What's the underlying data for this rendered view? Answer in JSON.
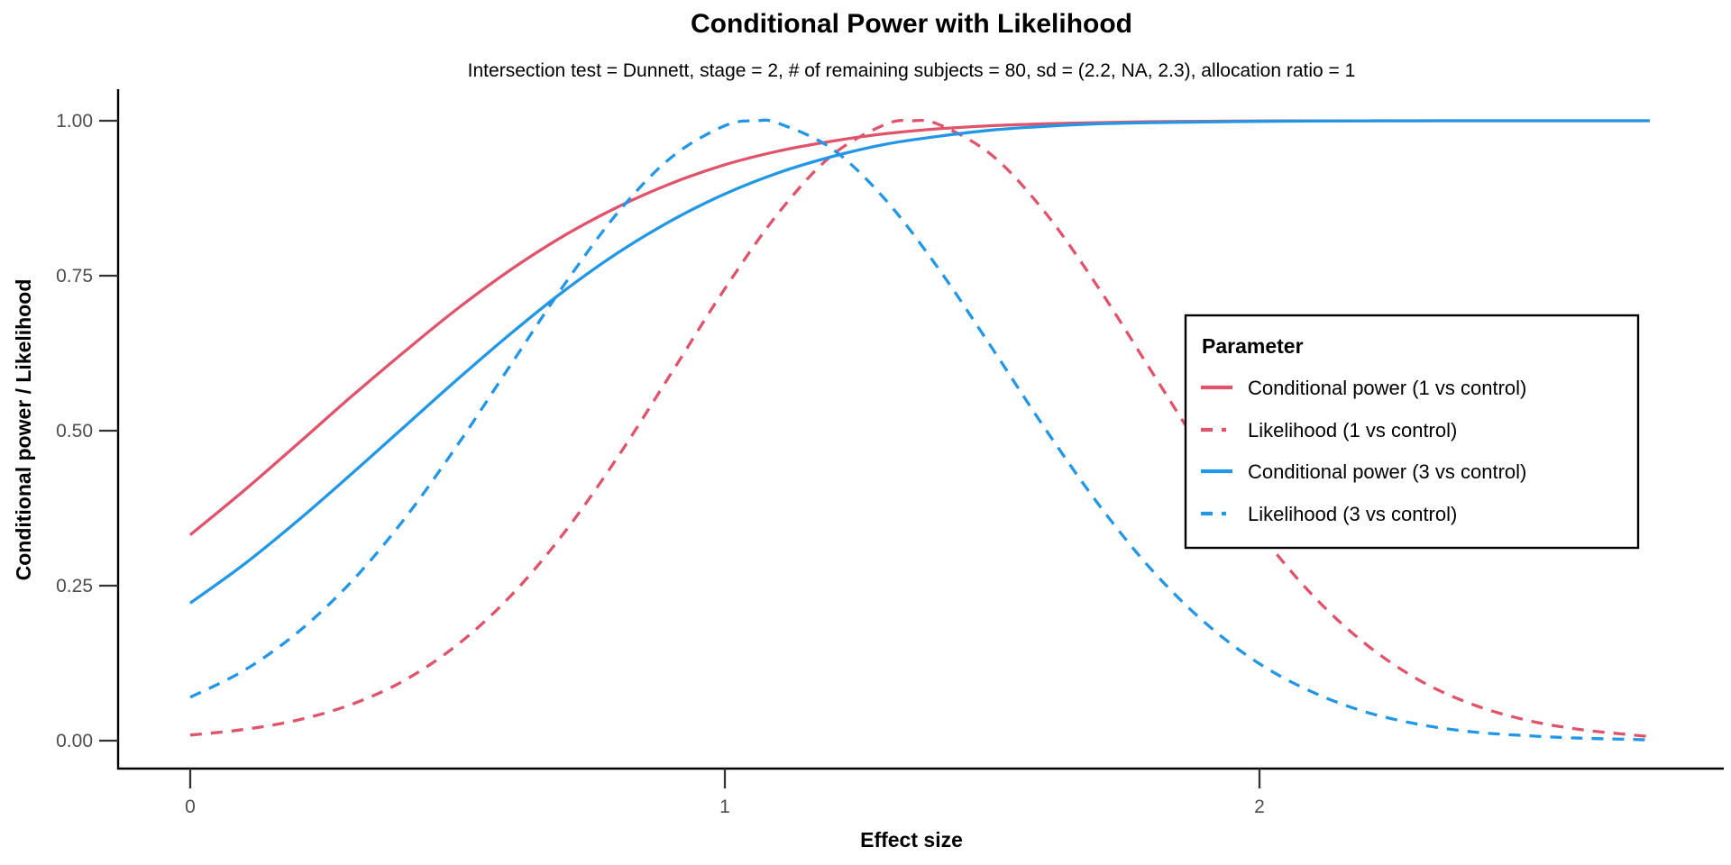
{
  "chart_data": {
    "type": "line",
    "title": "Conditional Power with Likelihood",
    "subtitle": "Intersection test = Dunnett, stage = 2, # of remaining subjects = 80, sd = (2.2, NA, 2.3), allocation ratio = 1",
    "xlabel": "Effect size",
    "ylabel": "Conditional power / Likelihood",
    "xlim": [
      -0.14,
      2.87
    ],
    "ylim": [
      -0.05,
      1.05
    ],
    "grid": false,
    "x_ticks": [
      0,
      1,
      2
    ],
    "x_tick_labels": [
      "0",
      "1",
      "2"
    ],
    "y_ticks": [
      0,
      0.25,
      0.5,
      0.75,
      1
    ],
    "y_tick_labels": [
      "0.00",
      "0.25",
      "0.50",
      "0.75",
      "1.00"
    ],
    "legend_title": "Parameter",
    "legend_position": "inside-right",
    "series": [
      {
        "name": "Conditional power (1 vs control)",
        "color": "#DF536B",
        "style": "solid",
        "x": [
          0,
          0.1,
          0.2,
          0.3,
          0.4,
          0.5,
          0.6,
          0.7,
          0.8,
          0.9,
          1.0,
          1.1,
          1.2,
          1.3,
          1.4,
          1.5,
          1.6,
          1.7,
          1.8,
          1.9,
          2.0,
          2.1,
          2.2,
          2.3,
          2.4,
          2.5,
          2.6,
          2.7,
          2.73
        ],
        "y": [
          0.332,
          0.403,
          0.478,
          0.554,
          0.627,
          0.697,
          0.76,
          0.815,
          0.861,
          0.899,
          0.929,
          0.951,
          0.967,
          0.979,
          0.987,
          0.992,
          0.995,
          0.997,
          0.9986,
          0.9992,
          0.9996,
          0.9998,
          0.9999,
          1,
          1,
          1,
          1,
          1,
          1
        ]
      },
      {
        "name": "Likelihood (1 vs control)",
        "color": "#DF536B",
        "style": "dashed",
        "x": [
          0,
          0.1,
          0.2,
          0.3,
          0.4,
          0.5,
          0.6,
          0.7,
          0.8,
          0.9,
          1.0,
          1.1,
          1.2,
          1.3,
          1.35,
          1.4,
          1.5,
          1.6,
          1.7,
          1.8,
          1.9,
          2.0,
          2.1,
          2.2,
          2.3,
          2.4,
          2.5,
          2.6,
          2.7,
          2.73
        ],
        "y": [
          0.009,
          0.018,
          0.033,
          0.058,
          0.097,
          0.155,
          0.234,
          0.336,
          0.458,
          0.593,
          0.729,
          0.851,
          0.944,
          0.994,
          1,
          0.994,
          0.944,
          0.851,
          0.729,
          0.593,
          0.458,
          0.336,
          0.234,
          0.155,
          0.097,
          0.058,
          0.033,
          0.018,
          0.009,
          0.007
        ]
      },
      {
        "name": "Conditional power (3 vs control)",
        "color": "#2297E6",
        "style": "solid",
        "x": [
          0,
          0.1,
          0.2,
          0.3,
          0.4,
          0.5,
          0.6,
          0.7,
          0.8,
          0.9,
          1.0,
          1.1,
          1.2,
          1.3,
          1.4,
          1.5,
          1.6,
          1.7,
          1.8,
          1.9,
          2.0,
          2.1,
          2.2,
          2.3,
          2.4,
          2.5,
          2.6,
          2.7,
          2.73
        ],
        "y": [
          0.222,
          0.284,
          0.354,
          0.429,
          0.506,
          0.583,
          0.657,
          0.726,
          0.787,
          0.839,
          0.882,
          0.916,
          0.942,
          0.962,
          0.975,
          0.985,
          0.991,
          0.995,
          0.997,
          0.998,
          0.999,
          0.9995,
          0.9998,
          0.9999,
          1,
          1,
          1,
          1,
          1
        ]
      },
      {
        "name": "Likelihood (3 vs control)",
        "color": "#2297E6",
        "style": "dashed",
        "x": [
          0,
          0.1,
          0.2,
          0.3,
          0.4,
          0.5,
          0.6,
          0.7,
          0.8,
          0.9,
          1.0,
          1.06,
          1.1,
          1.2,
          1.3,
          1.4,
          1.5,
          1.6,
          1.7,
          1.8,
          1.9,
          2.0,
          2.1,
          2.2,
          2.3,
          2.4,
          2.5,
          2.6,
          2.7,
          2.73
        ],
        "y": [
          0.07,
          0.113,
          0.174,
          0.255,
          0.357,
          0.477,
          0.607,
          0.736,
          0.852,
          0.941,
          0.992,
          1,
          0.996,
          0.955,
          0.873,
          0.761,
          0.633,
          0.502,
          0.38,
          0.274,
          0.189,
          0.124,
          0.078,
          0.046,
          0.026,
          0.014,
          0.008,
          0.004,
          0.002,
          0.001
        ]
      }
    ]
  },
  "colors": {
    "red": "#DF536B",
    "blue": "#2297E6",
    "axis_line": "#000000",
    "tick_mark": "#333333",
    "tick_label": "#4D4D4D",
    "legend_border": "#000000",
    "background": "#FFFFFF"
  }
}
